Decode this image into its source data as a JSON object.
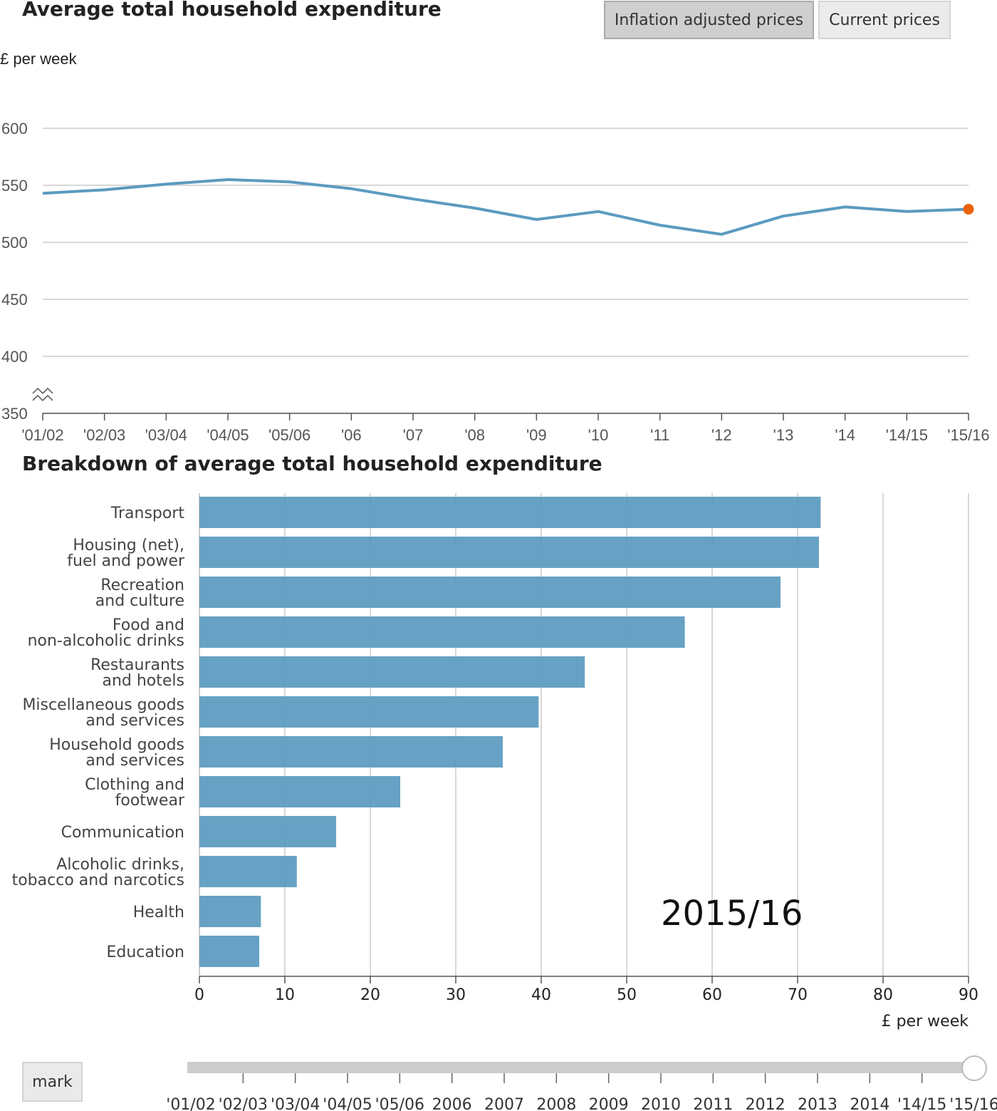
{
  "line_section": {
    "title": "Average total household expenditure",
    "toggle_inflation": "Inflation adjusted prices",
    "toggle_current": "Current prices",
    "unit_label": "£ per week"
  },
  "bar_section": {
    "title": "Breakdown of average total household expenditure",
    "year_label": "2015/16"
  },
  "controls": {
    "mark_label": "mark",
    "slider_labels": [
      "'01/02",
      "'02/03",
      "'03/04",
      "'04/05",
      "'05/06",
      "2006",
      "2007",
      "2008",
      "2009",
      "2010",
      "2011",
      "2012",
      "2013",
      "2014",
      "'14/15",
      "'15/16"
    ],
    "slider_value_index": 15
  },
  "colors": {
    "line": "#5b9bc0",
    "bar": "#5b9bc0",
    "highlight_dot": "#e8630a",
    "grid": "#cccccc"
  },
  "chart_data": [
    {
      "type": "line",
      "title": "Average total household expenditure",
      "ylabel": "£ per week",
      "ylim": [
        330,
        600
      ],
      "yticks": [
        350,
        400,
        450,
        500,
        550,
        600
      ],
      "axis_break": true,
      "x": [
        "'01/02",
        "'02/03",
        "'03/04",
        "'04/05",
        "'05/06",
        "'06",
        "'07",
        "'08",
        "'09",
        "'10",
        "'11",
        "'12",
        "'13",
        "'14",
        "'14/15",
        "'15/16"
      ],
      "values": [
        543,
        546,
        551,
        555,
        553,
        547,
        538,
        530,
        520,
        527,
        515,
        507,
        523,
        531,
        527,
        529
      ],
      "highlight_index": 15,
      "grid": true
    },
    {
      "type": "bar",
      "orientation": "horizontal",
      "title": "Breakdown of average total household expenditure",
      "xlabel": "£ per week",
      "xlim": [
        0,
        90
      ],
      "xticks": [
        0,
        10,
        20,
        30,
        40,
        50,
        60,
        70,
        80,
        90
      ],
      "categories": [
        [
          "Transport"
        ],
        [
          "Housing (net),",
          "fuel and power"
        ],
        [
          "Recreation",
          "and culture"
        ],
        [
          "Food and",
          "non-alcoholic drinks"
        ],
        [
          "Restaurants",
          "and hotels"
        ],
        [
          "Miscellaneous goods",
          "and services"
        ],
        [
          "Household goods",
          "and services"
        ],
        [
          "Clothing and",
          "footwear"
        ],
        [
          "Communication"
        ],
        [
          "Alcoholic drinks,",
          "tobacco and narcotics"
        ],
        [
          "Health"
        ],
        [
          "Education"
        ]
      ],
      "values": [
        72.7,
        72.5,
        68.0,
        56.8,
        45.1,
        39.7,
        35.5,
        23.5,
        16.0,
        11.4,
        7.2,
        7.0
      ],
      "annotation": "2015/16",
      "grid": true
    }
  ]
}
